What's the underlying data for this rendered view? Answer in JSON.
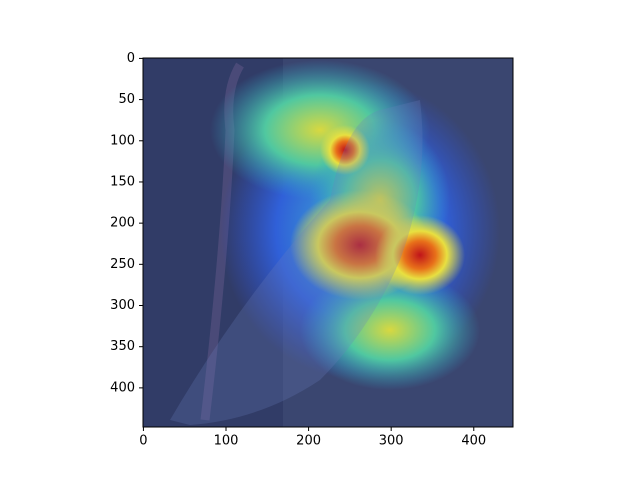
{
  "chart_data": {
    "type": "image",
    "xlim": [
      -0.5,
      447.5
    ],
    "ylim": [
      447.5,
      -0.5
    ],
    "xticks": [
      0,
      100,
      200,
      300,
      400
    ],
    "yticks": [
      0,
      50,
      100,
      150,
      200,
      250,
      300,
      350,
      400
    ]
  }
}
